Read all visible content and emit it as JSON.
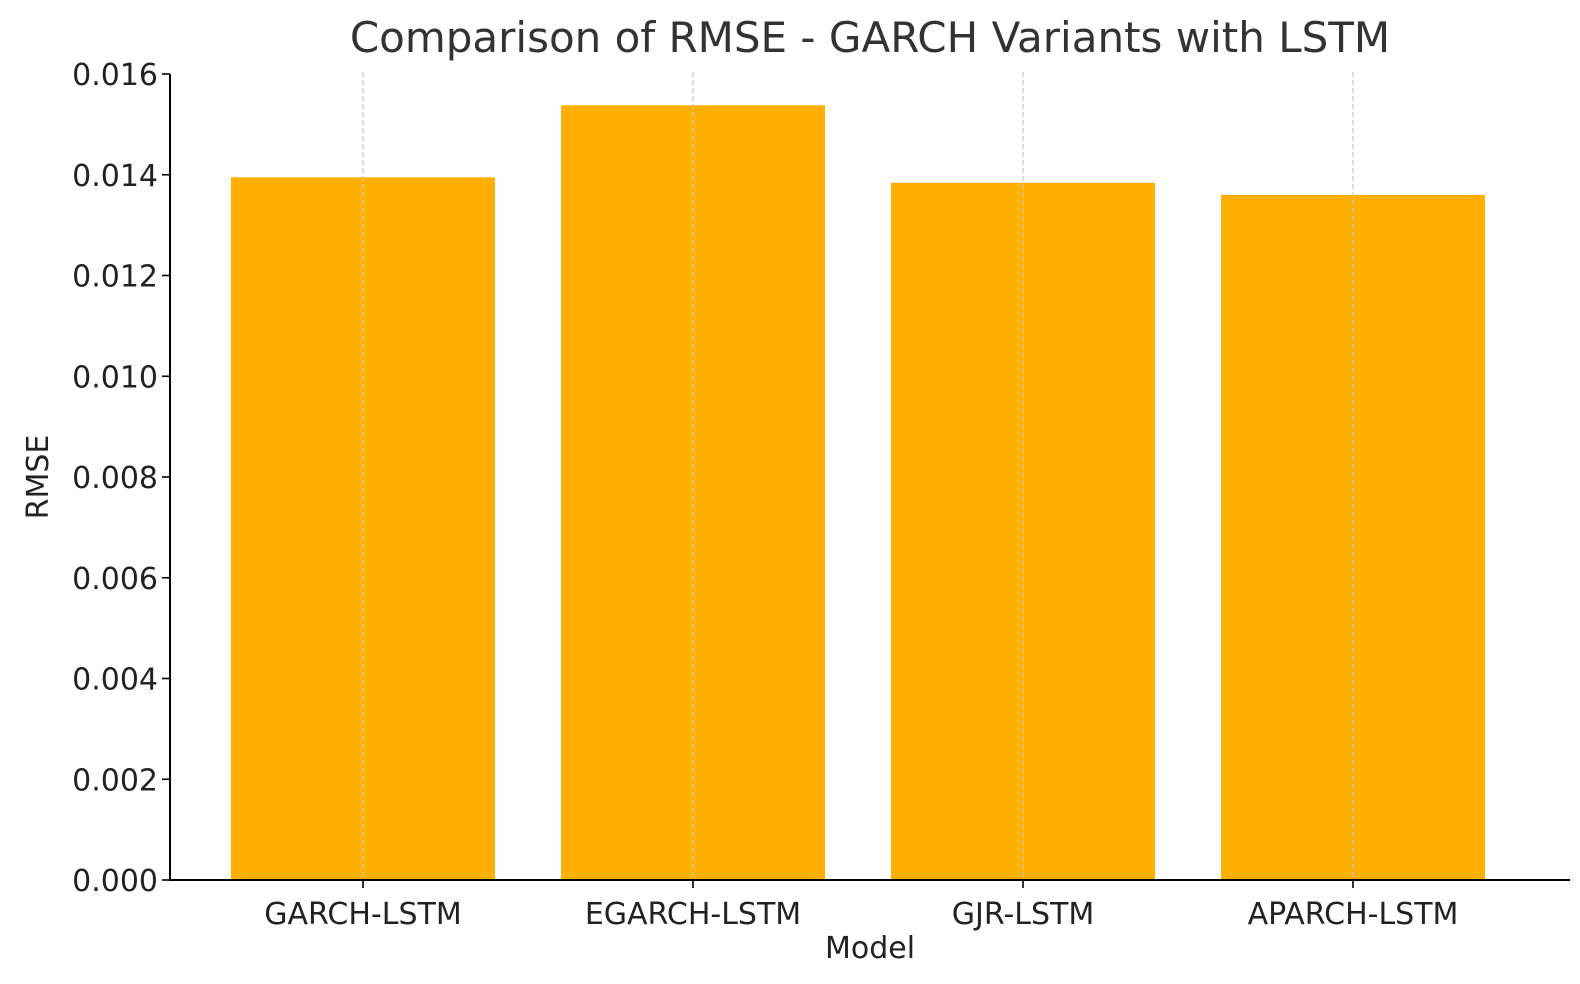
{
  "chart_data": {
    "type": "bar",
    "title": "Comparison of RMSE - GARCH Variants with LSTM",
    "xlabel": "Model",
    "ylabel": "RMSE",
    "categories": [
      "GARCH-LSTM",
      "EGARCH-LSTM",
      "GJR-LSTM",
      "APARCH-LSTM"
    ],
    "values": [
      0.01395,
      0.01538,
      0.01384,
      0.0136
    ],
    "ylim": [
      0,
      0.016
    ],
    "yticks": [
      "0.000",
      "0.002",
      "0.004",
      "0.006",
      "0.008",
      "0.010",
      "0.012",
      "0.014",
      "0.016"
    ],
    "grid": "vertical dashed at category positions",
    "legend": "none",
    "colors": {
      "bar": "#FFAF00",
      "axis": "#000000",
      "grid": "#c8c8c8",
      "text": "#222222",
      "title": "#333333"
    }
  }
}
